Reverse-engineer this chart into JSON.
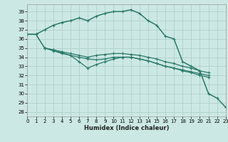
{
  "xlabel": "Humidex (Indice chaleur)",
  "xlim": [
    0,
    23
  ],
  "ylim": [
    27.5,
    39.8
  ],
  "yticks": [
    28,
    29,
    30,
    31,
    32,
    33,
    34,
    35,
    36,
    37,
    38,
    39
  ],
  "xticks": [
    0,
    1,
    2,
    3,
    4,
    5,
    6,
    7,
    8,
    9,
    10,
    11,
    12,
    13,
    14,
    15,
    16,
    17,
    18,
    19,
    20,
    21,
    22,
    23
  ],
  "bg_color": "#cce8e4",
  "line_color": "#2a7a6a",
  "grid_color": "#aaccc8",
  "lines": [
    {
      "x": [
        0,
        1,
        2,
        3,
        4,
        5,
        6,
        7,
        8,
        9,
        10,
        11,
        12,
        13,
        14,
        15,
        16,
        17,
        18,
        19,
        20,
        21,
        22,
        23
      ],
      "y": [
        36.5,
        36.5,
        37.0,
        37.5,
        37.8,
        38.0,
        38.3,
        38.0,
        38.5,
        38.8,
        39.0,
        39.0,
        39.2,
        38.8,
        38.0,
        37.5,
        36.3,
        36.0,
        33.5,
        33.0,
        32.5,
        30.0,
        29.5,
        28.5
      ]
    },
    {
      "x": [
        0,
        1,
        2,
        3,
        4,
        5,
        6,
        7,
        8,
        9,
        10,
        11,
        12,
        13,
        14,
        15,
        16,
        17,
        18,
        19,
        20,
        21
      ],
      "y": [
        36.5,
        36.5,
        35.0,
        34.8,
        34.6,
        34.4,
        34.2,
        34.0,
        34.2,
        34.3,
        34.4,
        34.4,
        34.3,
        34.2,
        34.0,
        33.8,
        33.5,
        33.3,
        33.0,
        32.8,
        32.5,
        32.3
      ]
    },
    {
      "x": [
        0,
        1,
        2,
        3,
        4,
        5,
        6,
        7,
        8,
        9,
        10,
        11,
        12,
        13,
        14,
        15,
        16,
        17,
        18,
        19,
        20,
        21
      ],
      "y": [
        36.5,
        36.5,
        35.0,
        34.7,
        34.4,
        34.2,
        34.0,
        33.8,
        33.7,
        33.8,
        34.0,
        34.0,
        34.0,
        33.8,
        33.6,
        33.3,
        33.0,
        32.8,
        32.6,
        32.4,
        32.2,
        32.0
      ]
    },
    {
      "x": [
        2,
        3,
        4,
        5,
        6,
        7,
        8,
        9,
        10,
        11,
        12,
        13,
        14,
        15,
        16,
        17,
        18,
        19,
        20,
        21
      ],
      "y": [
        35.0,
        34.8,
        34.5,
        34.2,
        33.5,
        32.8,
        33.2,
        33.5,
        33.8,
        34.0,
        34.0,
        33.8,
        33.6,
        33.3,
        33.0,
        32.8,
        32.5,
        32.3,
        32.0,
        31.8
      ]
    }
  ]
}
